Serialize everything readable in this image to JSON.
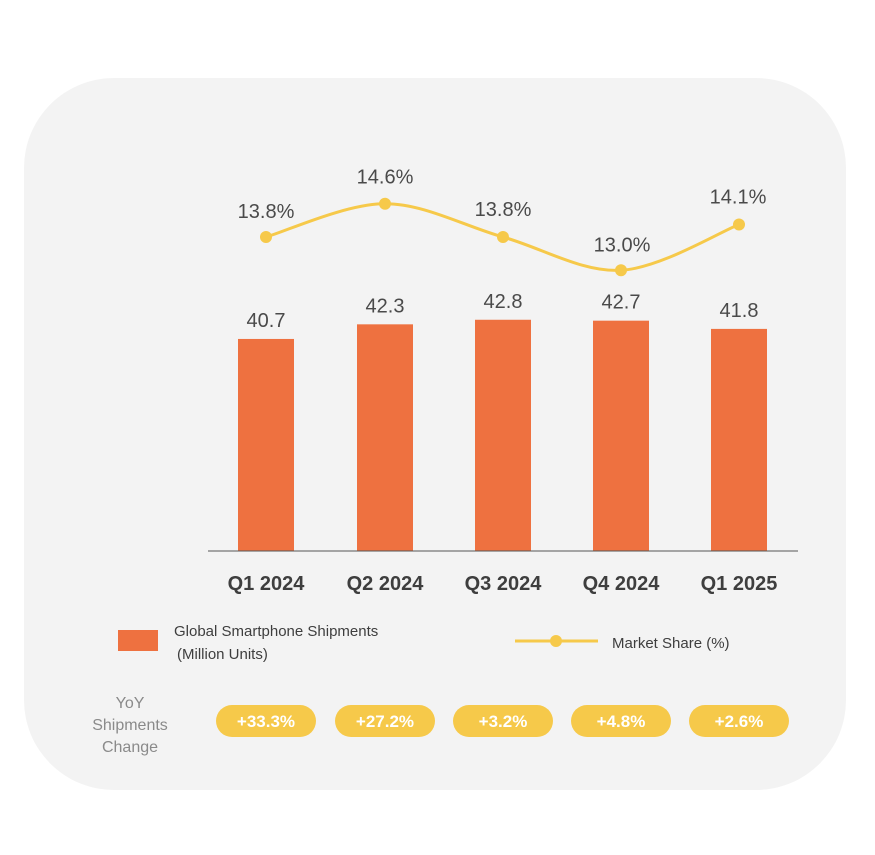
{
  "chart_data": {
    "type": "bar",
    "categories": [
      "Q1 2024",
      "Q2 2024",
      "Q3 2024",
      "Q4 2024",
      "Q1 2025"
    ],
    "series": [
      {
        "name": "Global Smartphone Shipments (Million Units)",
        "type": "bar",
        "values": [
          40.7,
          42.3,
          42.8,
          42.7,
          41.8
        ],
        "value_labels": [
          "40.7",
          "42.3",
          "42.8",
          "42.7",
          "41.8"
        ],
        "color": "#ee7140"
      },
      {
        "name": "Market Share (%)",
        "type": "line",
        "values": [
          13.8,
          14.6,
          13.8,
          13.0,
          14.1
        ],
        "value_labels": [
          "13.8%",
          "14.6%",
          "13.8%",
          "13.0%",
          "14.1%"
        ],
        "color": "#f6c94a"
      }
    ],
    "legend": {
      "bar_line1": "Global Smartphone Shipments",
      "bar_line2": "(Million Units)",
      "line_label": "Market Share (%)",
      "placement": "bottom"
    },
    "yoy": {
      "title_lines": [
        "YoY",
        "Shipments",
        "Change"
      ],
      "values": [
        "+33.3%",
        "+27.2%",
        "+3.2%",
        "+4.8%",
        "+2.6%"
      ],
      "badge_color": "#f6c94a"
    },
    "grid": false
  }
}
